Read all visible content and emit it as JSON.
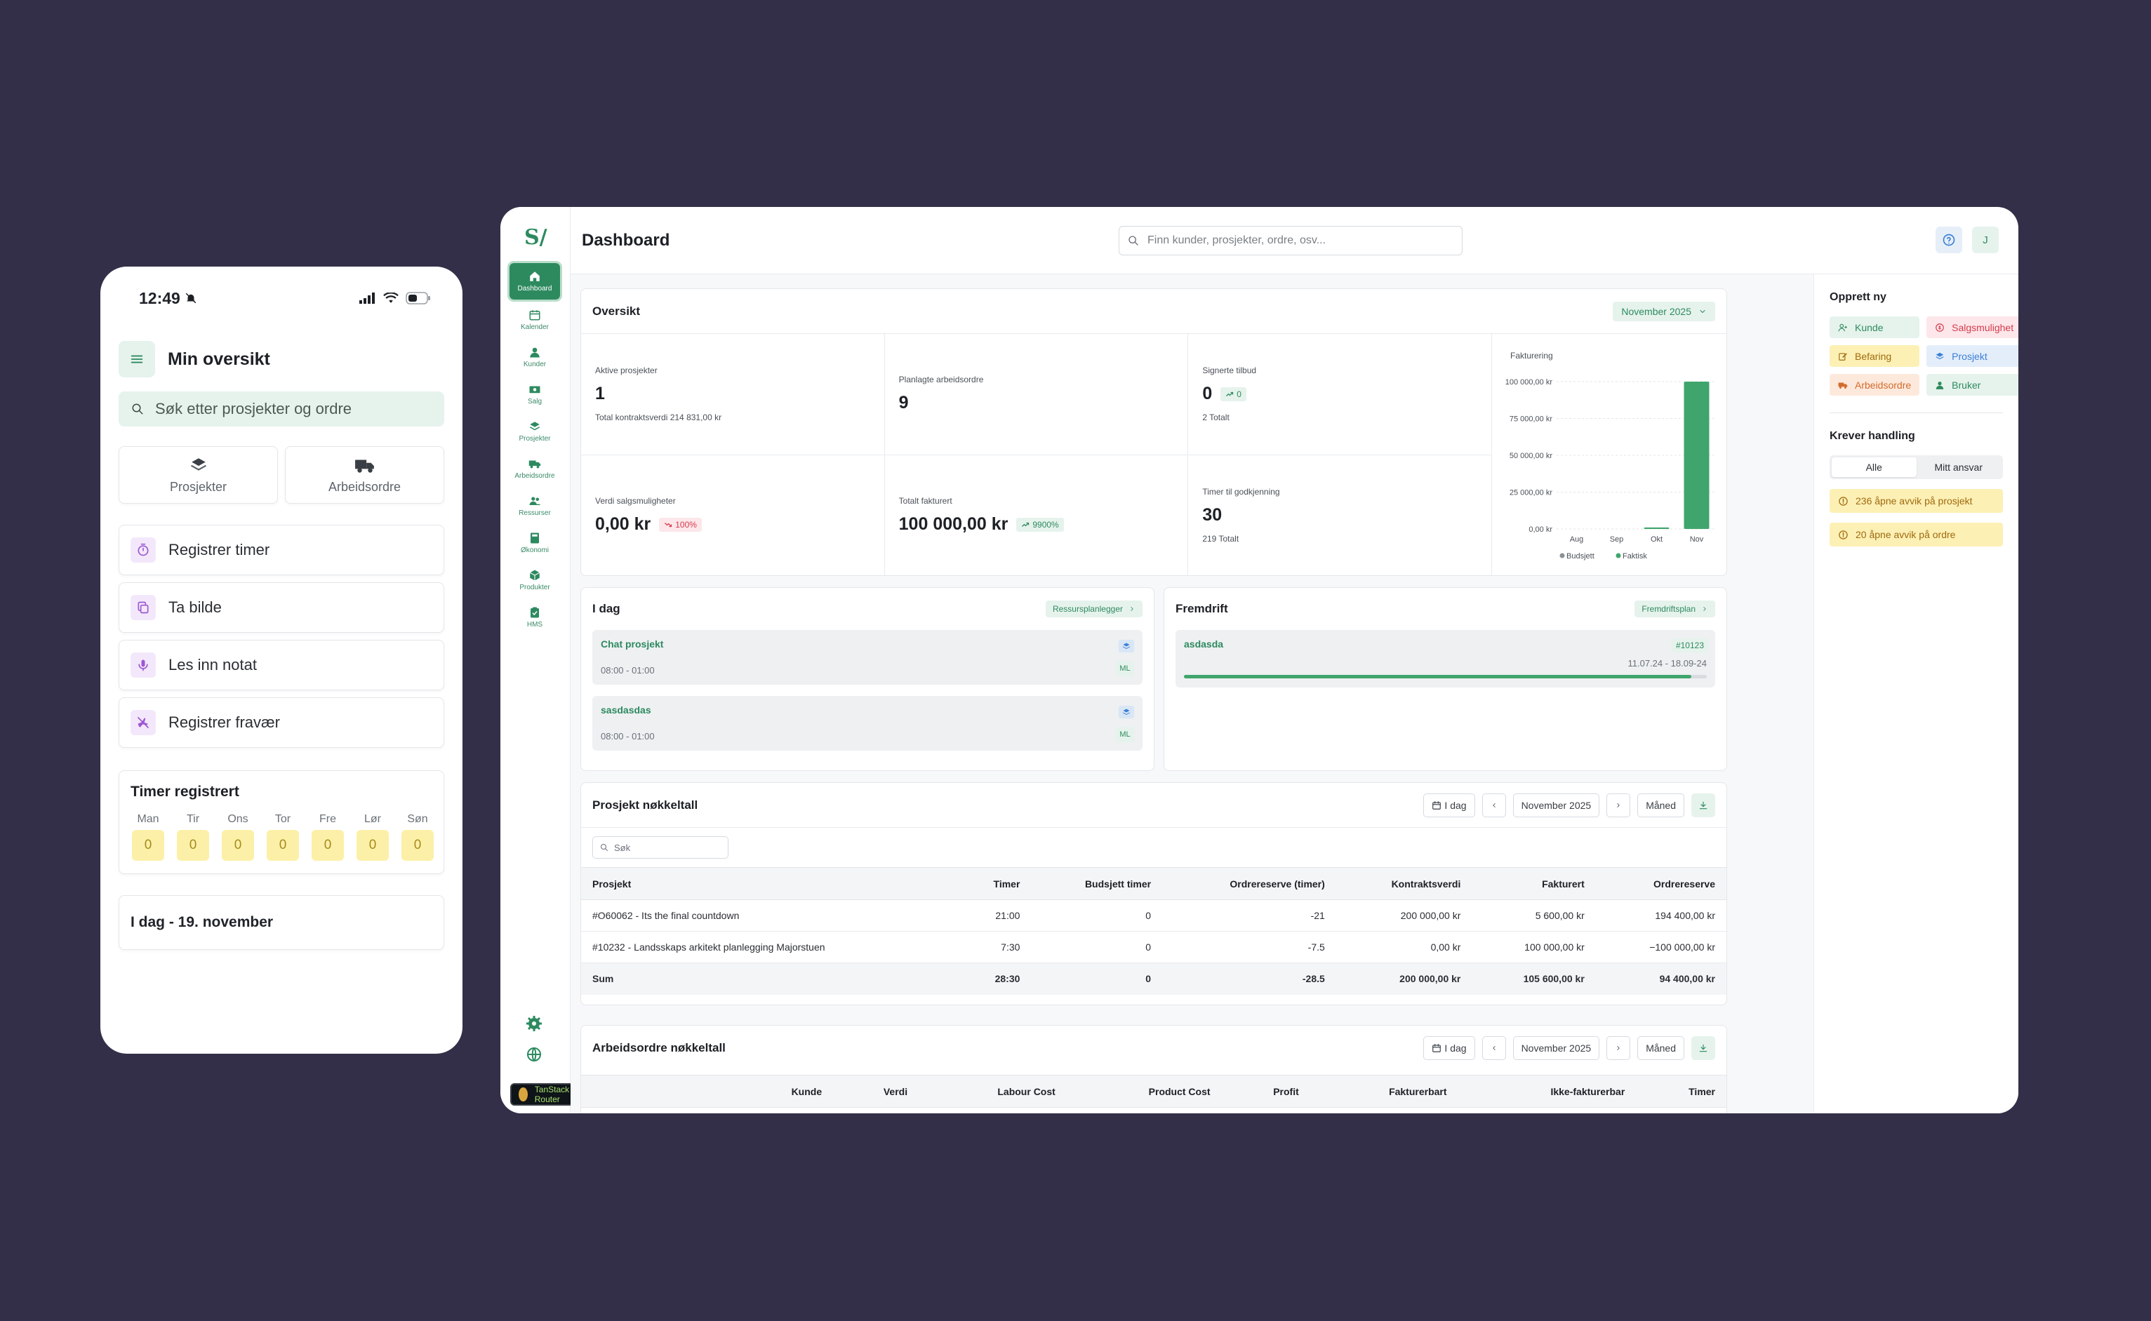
{
  "phone": {
    "time": "12:49",
    "title": "Min oversikt",
    "search_placeholder": "Søk etter prosjekter og ordre",
    "tiles": [
      {
        "label": "Prosjekter",
        "icon": "layers-icon"
      },
      {
        "label": "Arbeidsordre",
        "icon": "truck-icon"
      }
    ],
    "actions": [
      {
        "label": "Registrer timer",
        "icon": "timer-icon"
      },
      {
        "label": "Ta bilde",
        "icon": "copy-icon"
      },
      {
        "label": "Les inn notat",
        "icon": "mic-icon"
      },
      {
        "label": "Registrer fravær",
        "icon": "plane-off-icon"
      }
    ],
    "timer": {
      "title": "Timer registrert",
      "days": [
        {
          "label": "Man",
          "value": "0"
        },
        {
          "label": "Tir",
          "value": "0"
        },
        {
          "label": "Ons",
          "value": "0"
        },
        {
          "label": "Tor",
          "value": "0"
        },
        {
          "label": "Fre",
          "value": "0"
        },
        {
          "label": "Lør",
          "value": "0"
        },
        {
          "label": "Søn",
          "value": "0"
        }
      ]
    },
    "today": "I dag - 19. november"
  },
  "desktop": {
    "logo": "S/",
    "nav": [
      {
        "label": "Dashboard",
        "icon": "home-icon",
        "active": true
      },
      {
        "label": "Kalender",
        "icon": "calendar-icon"
      },
      {
        "label": "Kunder",
        "icon": "user-icon"
      },
      {
        "label": "Salg",
        "icon": "money-icon"
      },
      {
        "label": "Prosjekter",
        "icon": "layers-icon"
      },
      {
        "label": "Arbeidsordre",
        "icon": "truck-icon"
      },
      {
        "label": "Ressurser",
        "icon": "users-icon"
      },
      {
        "label": "Økonomi",
        "icon": "calculator-icon"
      },
      {
        "label": "Produkter",
        "icon": "box-icon"
      },
      {
        "label": "HMS",
        "icon": "clipboard-icon"
      }
    ],
    "devtools": "TanStack Router",
    "page_title": "Dashboard",
    "search_placeholder": "Finn kunder, prosjekter, ordre, osv...",
    "avatar": "J",
    "oversikt": {
      "title": "Oversikt",
      "month": "November 2025",
      "kpis": [
        {
          "label": "Aktive prosjekter",
          "value": "1",
          "sub": "Total kontraktsverdi 214 831,00 kr"
        },
        {
          "label": "Planlagte arbeidsordre",
          "value": "9",
          "sub": ""
        },
        {
          "label": "Signerte tilbud",
          "value": "0",
          "badge": "0",
          "trend": "up",
          "sub": "2 Totalt"
        },
        {
          "label": "Verdi salgsmuligheter",
          "value": "0,00 kr",
          "badge": "100%",
          "trend": "down",
          "sub": ""
        },
        {
          "label": "Totalt fakturert",
          "value": "100 000,00 kr",
          "badge": "9900%",
          "trend": "up",
          "sub": ""
        },
        {
          "label": "Timer til godkjenning",
          "value": "30",
          "sub": "219 Totalt"
        }
      ]
    },
    "chart_data": {
      "type": "bar",
      "title": "Fakturering",
      "categories": [
        "Aug",
        "Sep",
        "Okt",
        "Nov"
      ],
      "series": [
        {
          "name": "Budsjett",
          "values": [
            0,
            0,
            0,
            0
          ],
          "color": "#8a9096"
        },
        {
          "name": "Faktisk",
          "values": [
            0,
            0,
            1000,
            100000
          ],
          "color": "#3fa56c"
        }
      ],
      "yticks": [
        "0,00 kr",
        "25 000,00 kr",
        "50 000,00 kr",
        "75 000,00 kr",
        "100 000,00 kr"
      ],
      "ylim": [
        0,
        100000
      ],
      "legend": "bottom"
    },
    "idag": {
      "title": "I dag",
      "link": "Ressursplanlegger",
      "items": [
        {
          "name": "Chat prosjekt",
          "time": "08:00 - 01:00",
          "initials": "ML"
        },
        {
          "name": "sasdasdas",
          "time": "08:00 - 01:00",
          "initials": "ML"
        }
      ]
    },
    "fremdrift": {
      "title": "Fremdrift",
      "link": "Fremdriftsplan",
      "item": {
        "name": "asdasda",
        "id": "#10123",
        "dates": "11.07.24 - 18.09-24",
        "progress": 0.97
      }
    },
    "prosjekt": {
      "title": "Prosjekt nøkkeltall",
      "today_btn": "I dag",
      "month": "November 2025",
      "period": "Måned",
      "search_placeholder": "Søk",
      "columns": [
        "Prosjekt",
        "Timer",
        "Budsjett timer",
        "Ordrereserve (timer)",
        "Kontraktsverdi",
        "Fakturert",
        "Ordrereserve"
      ],
      "rows": [
        [
          "#O60062 - Its the final countdown",
          "21:00",
          "0",
          "-21",
          "200 000,00 kr",
          "5 600,00 kr",
          "194 400,00 kr"
        ],
        [
          "#10232 - Landsskaps arkitekt planlegging Majorstuen",
          "7:30",
          "0",
          "-7.5",
          "0,00 kr",
          "100 000,00 kr",
          "−100 000,00 kr"
        ]
      ],
      "sum": [
        "Sum",
        "28:30",
        "0",
        "-28.5",
        "200 000,00 kr",
        "105 600,00 kr",
        "94 400,00 kr"
      ]
    },
    "arbeidsordre": {
      "title": "Arbeidsordre nøkkeltall",
      "today_btn": "I dag",
      "month": "November 2025",
      "period": "Måned",
      "columns": [
        "Kunde",
        "Verdi",
        "Labour Cost",
        "Product Cost",
        "Profit",
        "Fakturerbart",
        "Ikke-fakturerbar",
        "Timer"
      ]
    },
    "opprett": {
      "title": "Opprett ny",
      "items": [
        {
          "label": "Kunde",
          "icon": "user-plus-icon",
          "bg": "#e6f3ec",
          "fg": "#2d8a5f"
        },
        {
          "label": "Salgsmulighet",
          "icon": "circle-dollar-icon",
          "bg": "#fde7ea",
          "fg": "#d53b4d"
        },
        {
          "label": "Befaring",
          "icon": "edit-icon",
          "bg": "#fcf0b5",
          "fg": "#a06a0d"
        },
        {
          "label": "Prosjekt",
          "icon": "layers-icon",
          "bg": "#e3eefa",
          "fg": "#3d7fd6"
        },
        {
          "label": "Arbeidsordre",
          "icon": "truck-icon",
          "bg": "#fde9dc",
          "fg": "#d46a2a"
        },
        {
          "label": "Bruker",
          "icon": "user-icon",
          "bg": "#e6f3ec",
          "fg": "#2d8a5f"
        }
      ]
    },
    "krever": {
      "title": "Krever handling",
      "tabs": [
        "Alle",
        "Mitt ansvar"
      ],
      "alerts": [
        "236 åpne avvik på prosjekt",
        "20 åpne avvik på ordre"
      ]
    }
  }
}
